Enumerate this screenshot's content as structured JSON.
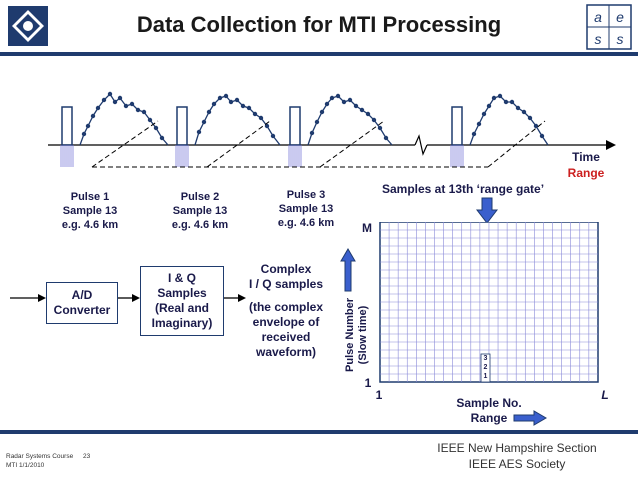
{
  "title": "Data Collection for MTI Processing",
  "axis": {
    "time": "Time",
    "range": "Range"
  },
  "pulses": [
    {
      "name": "Pulse 1",
      "sample": "Sample 13",
      "range": "e.g. 4.6 km"
    },
    {
      "name": "Pulse 2",
      "sample": "Sample 13",
      "range": "e.g. 4.6 km"
    },
    {
      "name": "Pulse 3",
      "sample": "Sample 13",
      "range": "e.g. 4.6 km"
    }
  ],
  "samples_label": "Samples at 13th ‘range gate’",
  "adc": {
    "line1": "A/D",
    "line2": "Converter"
  },
  "iq": {
    "line1": "I & Q",
    "line2": "Samples",
    "line3": "(Real and",
    "line4": "Imaginary)"
  },
  "complex": {
    "line1": "Complex",
    "line2": "I / Q samples",
    "line3": "(the complex",
    "line4": "envelope of",
    "line5": "received",
    "line6": "waveform)"
  },
  "grid": {
    "corner_m": "M",
    "corner_l": "L",
    "one_y": "1",
    "one_x": "1",
    "pulse_label_1": "Pulse Number",
    "pulse_label_2": "(Slow time)",
    "sample_label_1": "Sample No.",
    "sample_label_2": "Range",
    "cells": [
      "3",
      "2",
      "1"
    ]
  },
  "footer": {
    "course": "Radar Systems Course",
    "page": "23",
    "section": "MTI 1/1/2010",
    "ieee1": "IEEE New Hampshire Section",
    "ieee2": "IEEE AES Society"
  },
  "colors": {
    "navy": "#1f3b6e",
    "grid": "#8a8ad8",
    "red": "#cc2020",
    "blue": "#3a5fcd"
  }
}
